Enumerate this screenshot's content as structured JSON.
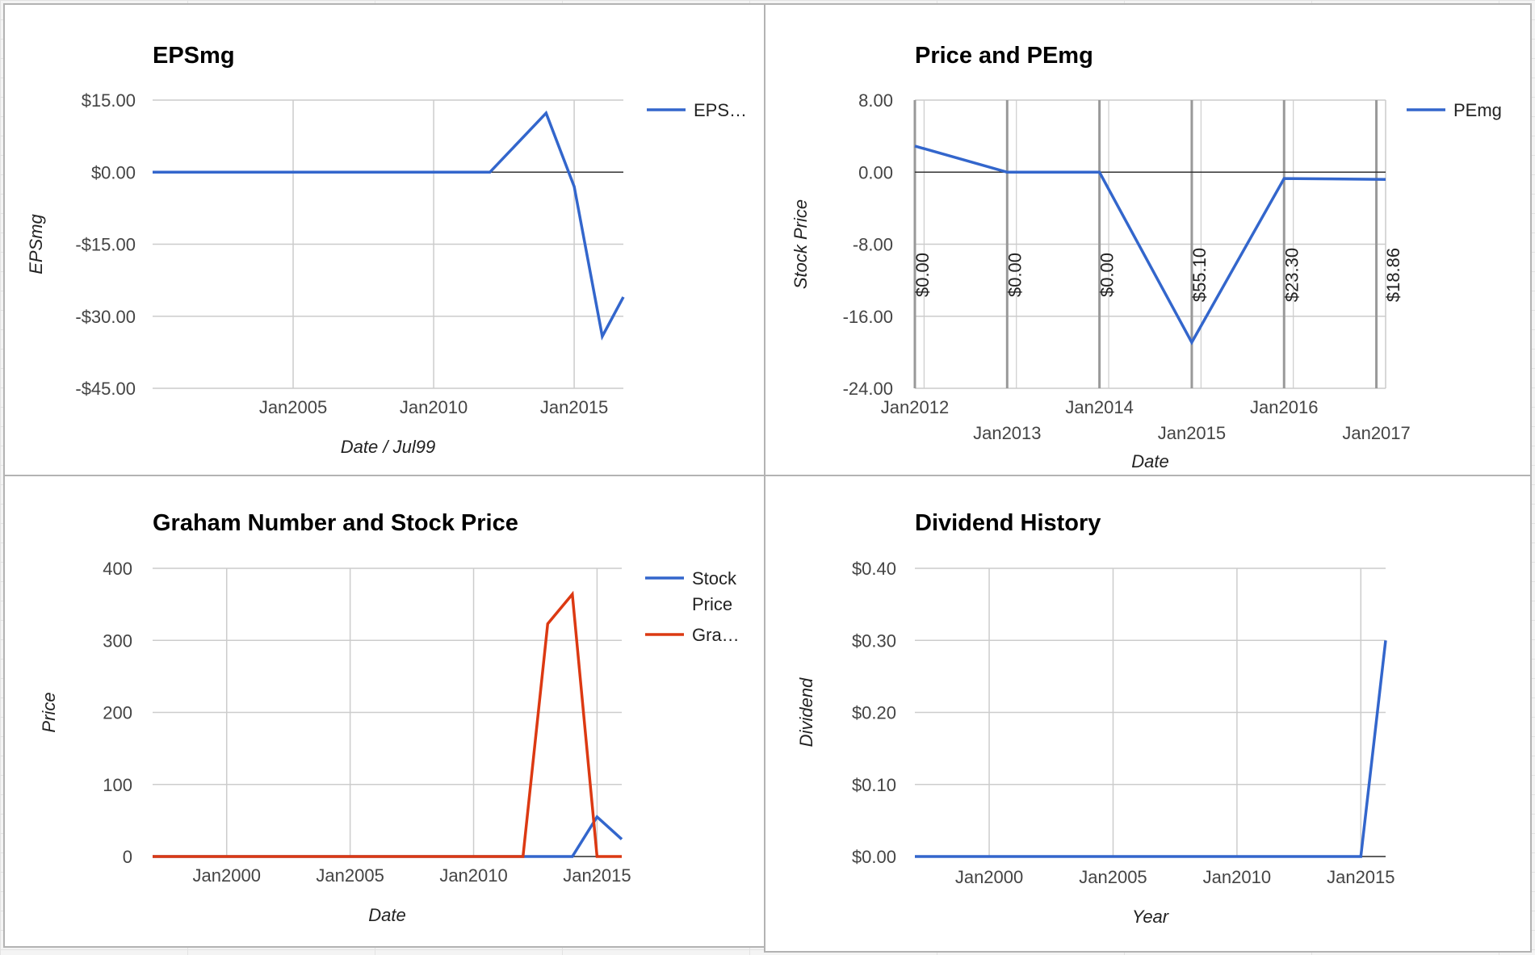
{
  "colors": {
    "series_blue": "#3366cc",
    "series_red": "#dc3912",
    "grid": "#cccccc",
    "axis_zero": "#333333",
    "text": "#444444"
  },
  "chart_data": [
    {
      "id": "epsmg",
      "type": "line",
      "title": "EPSmg",
      "xlabel": "Date / Jul99",
      "ylabel": "EPSmg",
      "legend_position": "right",
      "xlim": [
        2000,
        2016.75
      ],
      "ylim": [
        -45,
        15
      ],
      "y_ticks": [
        15,
        0,
        -15,
        -30,
        -45
      ],
      "y_tick_labels": [
        "$15.00",
        "$0.00",
        "-$15.00",
        "-$30.00",
        "-$45.00"
      ],
      "x_ticks": [
        2005,
        2010,
        2015
      ],
      "x_tick_labels": [
        "Jan2005",
        "Jan2010",
        "Jan2015"
      ],
      "grid": true,
      "series": [
        {
          "name": "EPS…",
          "color": "#3366cc",
          "x": [
            2000,
            2012,
            2014,
            2015,
            2016,
            2016.75
          ],
          "y": [
            0,
            0,
            12.3,
            -3,
            -34.2,
            -26
          ]
        }
      ]
    },
    {
      "id": "price-pemg",
      "type": "line",
      "title": "Price and PEmg",
      "xlabel": "Date",
      "ylabel": "Stock Price",
      "legend_position": "right",
      "xlim": [
        2012,
        2017.1
      ],
      "ylim": [
        -24,
        8
      ],
      "y_ticks": [
        8,
        0,
        -8,
        -16,
        -24
      ],
      "y_tick_labels": [
        "8.00",
        "0.00",
        "-8.00",
        "-16.00",
        "-24.00"
      ],
      "x_ticks": [
        2012,
        2013,
        2014,
        2015,
        2016,
        2017
      ],
      "x_tick_labels": [
        "Jan2012",
        "Jan2013",
        "Jan2014",
        "Jan2015",
        "Jan2016",
        "Jan2017"
      ],
      "grid": true,
      "series": [
        {
          "name": "PEmg",
          "color": "#3366cc",
          "x": [
            2012,
            2013,
            2014,
            2015,
            2016,
            2017.1
          ],
          "y": [
            2.9,
            0,
            0,
            -18.9,
            -0.7,
            -0.8
          ]
        }
      ],
      "annotations": [
        {
          "x": 2012,
          "label": "$0.00"
        },
        {
          "x": 2013,
          "label": "$0.00"
        },
        {
          "x": 2014,
          "label": "$0.00"
        },
        {
          "x": 2015,
          "label": "$55.10"
        },
        {
          "x": 2016,
          "label": "$23.30"
        },
        {
          "x": 2017.1,
          "label": "$18.86"
        }
      ]
    },
    {
      "id": "graham",
      "type": "line",
      "title": "Graham Number and Stock Price",
      "xlabel": "Date",
      "ylabel": "Price",
      "legend_position": "right",
      "xlim": [
        1997,
        2016
      ],
      "ylim": [
        0,
        400
      ],
      "y_ticks": [
        400,
        300,
        200,
        100,
        0
      ],
      "y_tick_labels": [
        "400",
        "300",
        "200",
        "100",
        "0"
      ],
      "x_ticks": [
        2000,
        2005,
        2010,
        2015
      ],
      "x_tick_labels": [
        "Jan2000",
        "Jan2005",
        "Jan2010",
        "Jan2015"
      ],
      "grid": true,
      "series": [
        {
          "name": "Stock Price",
          "legend_lines": [
            "Stock",
            "Price"
          ],
          "color": "#3366cc",
          "x": [
            1997,
            2014,
            2015,
            2016
          ],
          "y": [
            0,
            0,
            55,
            24
          ]
        },
        {
          "name": "Gra…",
          "legend_lines": [
            "Gra…"
          ],
          "color": "#dc3912",
          "x": [
            1997,
            2012,
            2013,
            2014,
            2015,
            2016
          ],
          "y": [
            0,
            0,
            323,
            364,
            0,
            0
          ]
        }
      ]
    },
    {
      "id": "dividend",
      "type": "line",
      "title": "Dividend History",
      "xlabel": "Year",
      "ylabel": "Dividend",
      "legend_position": "none",
      "xlim": [
        1997,
        2016
      ],
      "ylim": [
        0,
        0.4
      ],
      "y_ticks": [
        0.4,
        0.3,
        0.2,
        0.1,
        0
      ],
      "y_tick_labels": [
        "$0.40",
        "$0.30",
        "$0.20",
        "$0.10",
        "$0.00"
      ],
      "x_ticks": [
        2000,
        2005,
        2010,
        2015
      ],
      "x_tick_labels": [
        "Jan2000",
        "Jan2005",
        "Jan2010",
        "Jan2015"
      ],
      "grid": true,
      "series": [
        {
          "name": "Dividend",
          "color": "#3366cc",
          "x": [
            1997,
            2015,
            2016
          ],
          "y": [
            0,
            0,
            0.3
          ]
        }
      ]
    }
  ]
}
